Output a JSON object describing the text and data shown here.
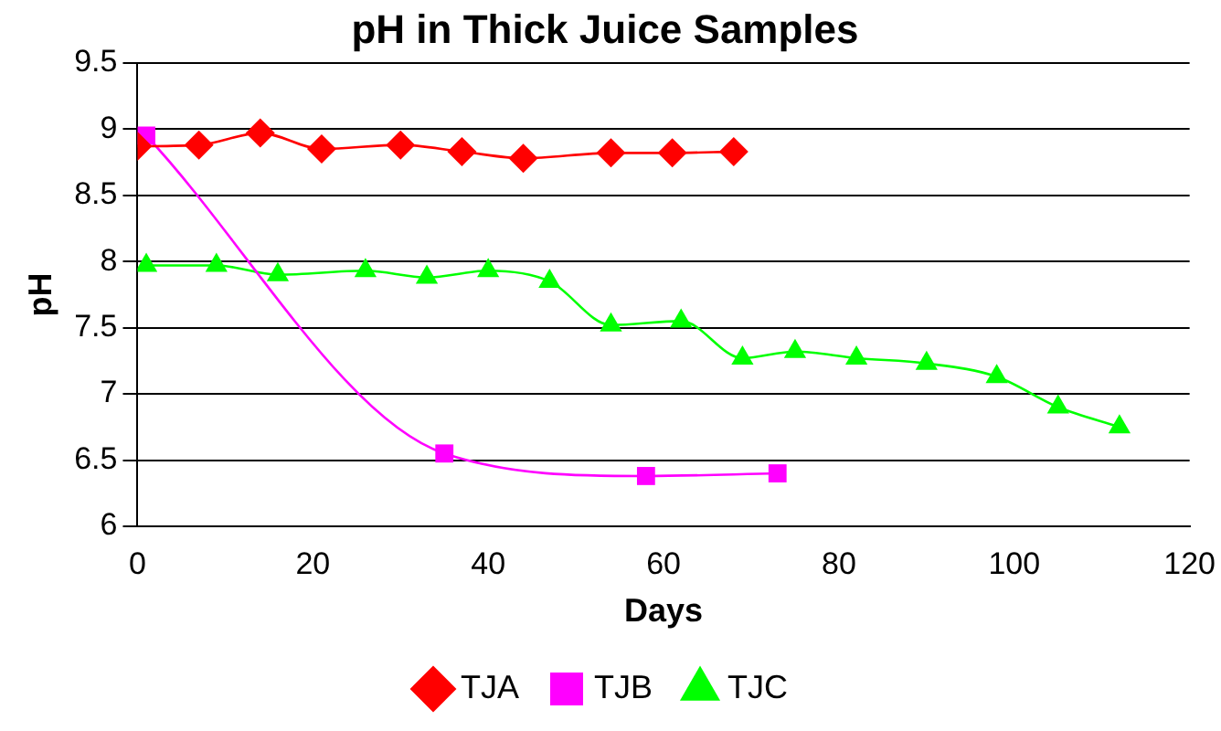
{
  "chart_data": {
    "type": "line",
    "title": "pH in Thick Juice Samples",
    "xlabel": "Days",
    "ylabel": "pH",
    "xlim": [
      0,
      120
    ],
    "xticks": [
      0,
      20,
      40,
      60,
      80,
      100,
      120
    ],
    "ylim": [
      6,
      9.5
    ],
    "yticks": [
      6,
      6.5,
      7,
      7.5,
      8,
      8.5,
      9,
      9.5
    ],
    "grid": "y",
    "legend": "bottom",
    "line_style": "solid",
    "series": [
      {
        "name": "TJA",
        "color": "#ff0000",
        "marker": "diamond",
        "x": [
          0,
          7,
          14,
          21,
          30,
          37,
          44,
          54,
          61,
          68
        ],
        "values": [
          8.87,
          8.88,
          8.97,
          8.85,
          8.88,
          8.83,
          8.78,
          8.82,
          8.82,
          8.83
        ]
      },
      {
        "name": "TJB",
        "color": "#ff00ff",
        "marker": "square",
        "x": [
          1,
          35,
          58,
          73
        ],
        "values": [
          8.95,
          6.55,
          6.38,
          6.4
        ]
      },
      {
        "name": "TJC",
        "color": "#00ff00",
        "marker": "triangle",
        "x": [
          1,
          9,
          16,
          26,
          33,
          40,
          47,
          54,
          62,
          69,
          75,
          82,
          90,
          98,
          105,
          112
        ],
        "values": [
          7.97,
          7.97,
          7.9,
          7.93,
          7.88,
          7.93,
          7.85,
          7.52,
          7.55,
          7.27,
          7.32,
          7.27,
          7.23,
          7.13,
          6.9,
          6.75
        ]
      }
    ]
  }
}
